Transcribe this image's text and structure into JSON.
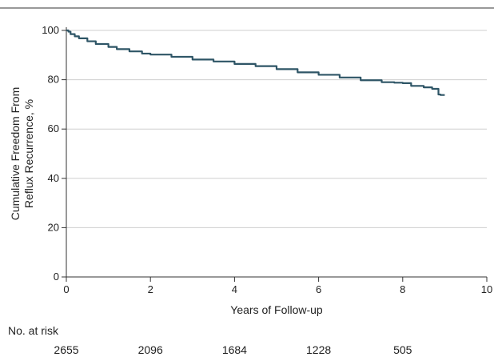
{
  "chart_data": {
    "type": "line",
    "title": "",
    "xlabel": "Years of Follow-up",
    "ylabel": [
      "Cumulative Freedom From",
      "Reflux Recurrence, %"
    ],
    "xlim": [
      0,
      10
    ],
    "ylim": [
      0,
      100
    ],
    "x_ticks": [
      0,
      2,
      4,
      6,
      8,
      10
    ],
    "y_ticks": [
      0,
      20,
      40,
      60,
      80,
      100
    ],
    "grid": "horizontal",
    "series": [
      {
        "color": "#2e5566",
        "x": [
          0,
          0.05,
          0.1,
          0.2,
          0.3,
          0.5,
          0.7,
          1.0,
          1.2,
          1.5,
          1.8,
          2.0,
          2.5,
          3.0,
          3.5,
          4.0,
          4.5,
          5.0,
          5.5,
          6.0,
          6.5,
          7.0,
          7.5,
          7.8,
          8.0,
          8.2,
          8.5,
          8.7,
          8.8,
          8.85,
          8.9,
          9.0
        ],
        "y": [
          100,
          99.5,
          98.5,
          97.6,
          96.8,
          95.6,
          94.5,
          93.3,
          92.4,
          91.5,
          90.6,
          90.2,
          89.3,
          88.2,
          87.4,
          86.4,
          85.5,
          84.3,
          83.0,
          82.0,
          80.9,
          79.8,
          79.0,
          78.8,
          78.6,
          77.5,
          76.9,
          76.3,
          76.3,
          74.0,
          73.8,
          73.8
        ]
      }
    ],
    "risk_table": {
      "title": "No. at risk",
      "x": [
        0,
        2,
        4,
        6,
        8
      ],
      "values": [
        "2655",
        "2096",
        "1684",
        "1228",
        "505"
      ]
    }
  }
}
